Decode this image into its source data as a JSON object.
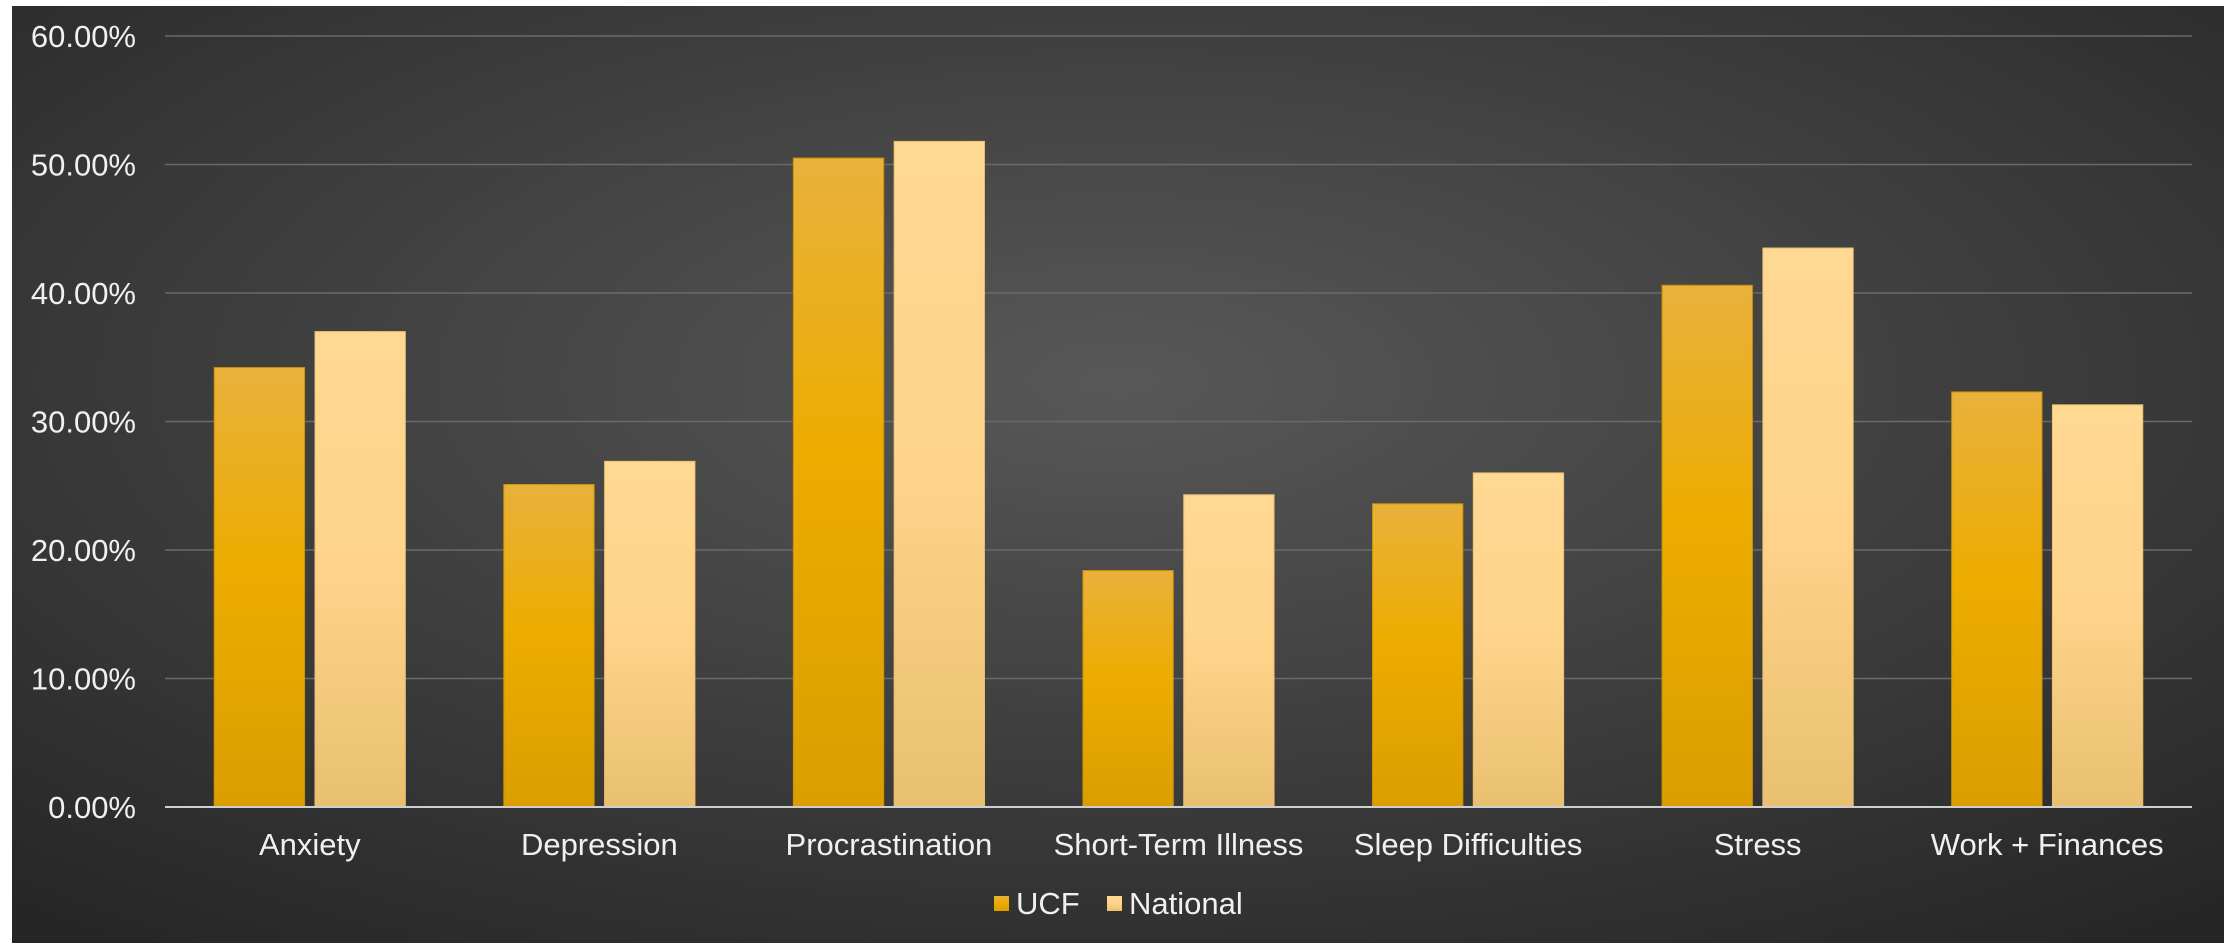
{
  "chart_data": {
    "type": "bar",
    "title": "",
    "xlabel": "",
    "ylabel": "",
    "categories": [
      "Anxiety",
      "Depression",
      "Procrastination",
      "Short-Term Illness",
      "Sleep Difficulties",
      "Stress",
      "Work + Finances"
    ],
    "series": [
      {
        "name": "UCF",
        "values": [
          0.342,
          0.251,
          0.505,
          0.184,
          0.236,
          0.406,
          0.323
        ],
        "color": "#E9A800"
      },
      {
        "name": "National",
        "values": [
          0.37,
          0.269,
          0.518,
          0.243,
          0.26,
          0.435,
          0.313
        ],
        "color": "#FFD58E"
      }
    ],
    "ylim": [
      0,
      0.6
    ],
    "yticks": [
      0,
      0.1,
      0.2,
      0.3,
      0.4,
      0.5,
      0.6
    ],
    "ytick_labels": [
      "0.00%",
      "10.00%",
      "20.00%",
      "30.00%",
      "40.00%",
      "50.00%",
      "60.00%"
    ],
    "grid": true,
    "legend_position": "bottom",
    "background": "#444444"
  }
}
